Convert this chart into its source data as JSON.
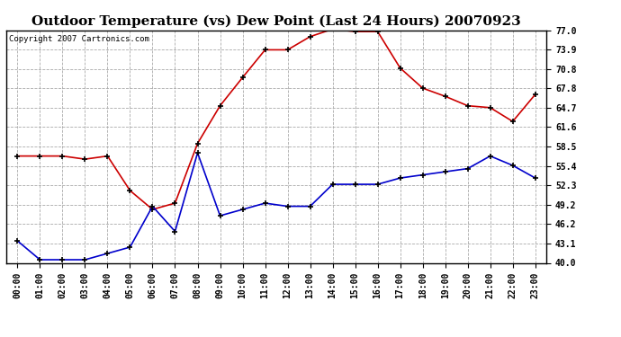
{
  "title": "Outdoor Temperature (vs) Dew Point (Last 24 Hours) 20070923",
  "copyright_text": "Copyright 2007 Cartronics.com",
  "x_labels": [
    "00:00",
    "01:00",
    "02:00",
    "03:00",
    "04:00",
    "05:00",
    "06:00",
    "07:00",
    "08:00",
    "09:00",
    "10:00",
    "11:00",
    "12:00",
    "13:00",
    "14:00",
    "15:00",
    "16:00",
    "17:00",
    "18:00",
    "19:00",
    "20:00",
    "21:00",
    "22:00",
    "23:00"
  ],
  "temp_data": [
    57.0,
    57.0,
    57.0,
    56.5,
    57.0,
    51.5,
    48.5,
    49.5,
    59.0,
    65.0,
    69.5,
    73.9,
    73.9,
    76.0,
    77.2,
    76.8,
    76.8,
    71.0,
    67.8,
    66.5,
    65.0,
    64.7,
    62.5,
    66.8
  ],
  "dew_data": [
    43.5,
    40.5,
    40.5,
    40.5,
    41.5,
    42.5,
    49.0,
    45.0,
    57.5,
    47.5,
    48.5,
    49.5,
    49.0,
    49.0,
    52.5,
    52.5,
    52.5,
    53.5,
    54.0,
    54.5,
    55.0,
    57.0,
    55.5,
    53.5
  ],
  "temp_color": "#cc0000",
  "dew_color": "#0000cc",
  "bg_color": "#ffffff",
  "grid_color": "#aaaaaa",
  "ylim_min": 40.0,
  "ylim_max": 77.0,
  "yticks": [
    40.0,
    43.1,
    46.2,
    49.2,
    52.3,
    55.4,
    58.5,
    61.6,
    64.7,
    67.8,
    70.8,
    73.9,
    77.0
  ],
  "title_fontsize": 11,
  "tick_fontsize": 7,
  "copyright_fontsize": 6.5
}
